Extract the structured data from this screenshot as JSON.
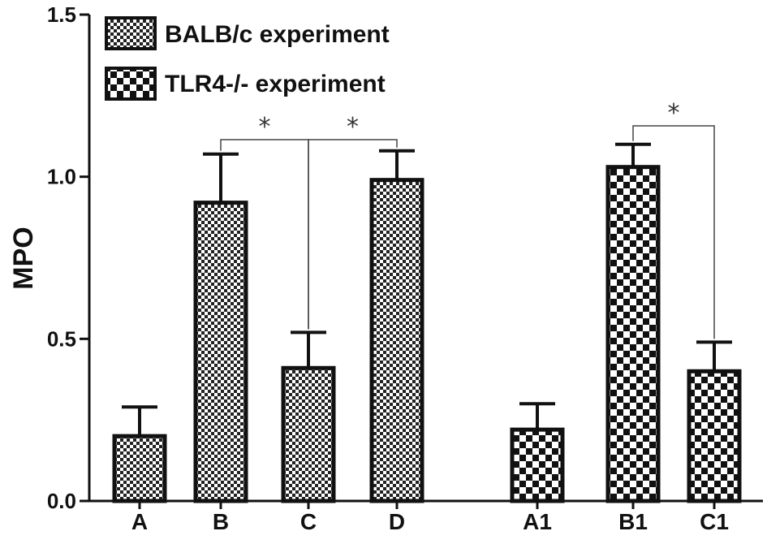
{
  "chart_data": {
    "type": "bar",
    "ylabel": "MPO",
    "ylim": [
      0,
      1.5
    ],
    "yticks": [
      "0.0",
      "0.5",
      "1.0",
      "1.5"
    ],
    "series": [
      {
        "name": "BALB/c experiment",
        "pattern": "fine-checker",
        "categories": [
          "A",
          "B",
          "C",
          "D"
        ],
        "values": [
          0.2,
          0.92,
          0.41,
          0.99
        ],
        "errors": [
          0.09,
          0.15,
          0.11,
          0.09
        ]
      },
      {
        "name": "TLR4-/- experiment",
        "pattern": "coarse-checker",
        "categories": [
          "A1",
          "B1",
          "C1"
        ],
        "values": [
          0.22,
          1.03,
          0.4
        ],
        "errors": [
          0.08,
          0.07,
          0.09
        ]
      }
    ],
    "significance": [
      {
        "from": "B",
        "to": "C",
        "label": "*"
      },
      {
        "from": "C",
        "to": "D",
        "label": "*"
      },
      {
        "from": "B1",
        "to": "C1",
        "label": "*"
      }
    ],
    "legend_position": "top-left",
    "grid": false,
    "colors": {
      "bar_fill": "#ffffff",
      "bar_pattern": "#111111",
      "stroke": "#111111"
    }
  }
}
